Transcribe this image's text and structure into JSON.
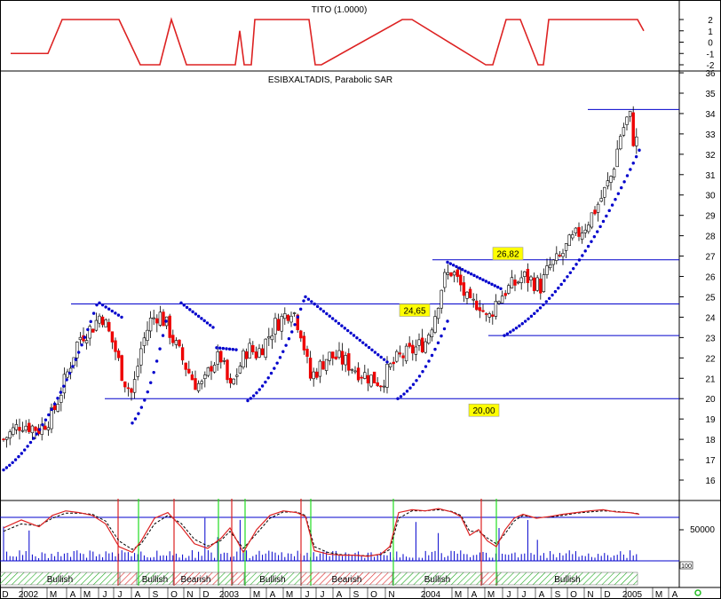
{
  "colors": {
    "indicator_line": "#dd2222",
    "sar_dots": "#0000cc",
    "level_lines": "#0000cc",
    "candle_up": "#ffffff",
    "candle_down": "#ee0000",
    "volume_bars": "#0000cc",
    "stoch_fast": "#dd2222",
    "stoch_slow": "#000000",
    "label_bg": "#ffff00",
    "bullish_hatch": "#22aa22",
    "bearish_hatch": "#dd2222",
    "signal_buy": "#22dd22",
    "signal_sell": "#dd2222"
  },
  "chart_data": [
    {
      "type": "line",
      "title": "TITO (1.0000)",
      "ylim": [
        -2,
        2
      ],
      "yticks": [
        "2",
        "1",
        "0",
        "-1",
        "-2"
      ],
      "x": [
        0,
        42,
        58,
        122,
        146,
        168,
        181,
        198,
        253,
        258,
        263,
        271,
        275,
        336,
        343,
        350,
        441,
        452,
        535,
        543,
        558,
        574,
        594,
        600,
        606,
        706,
        713
      ],
      "values": [
        -1,
        -1,
        2,
        2,
        -2,
        -2,
        2,
        -2,
        -2,
        1,
        -2,
        -2,
        2,
        2,
        -2,
        -2,
        2,
        2,
        -2,
        -2,
        2,
        2,
        -2,
        -2,
        2,
        2,
        1
      ]
    },
    {
      "type": "candlestick",
      "title": "ESIBXALTADIS, Parabolic SAR",
      "ylim": [
        15,
        36
      ],
      "yticks": [
        "16",
        "17",
        "18",
        "19",
        "20",
        "21",
        "22",
        "23",
        "24",
        "25",
        "26",
        "27",
        "28",
        "29",
        "30",
        "31",
        "32",
        "33",
        "34",
        "35",
        "36"
      ],
      "price_anchors": {
        "x": [
          0,
          20,
          40,
          55,
          70,
          85,
          100,
          110,
          125,
          135,
          145,
          155,
          165,
          175,
          185,
          195,
          205,
          215,
          225,
          235,
          245,
          255,
          265,
          275,
          285,
          295,
          305,
          315,
          325,
          335,
          340,
          345,
          355,
          365,
          375,
          385,
          395,
          405,
          415,
          425,
          435,
          445,
          455,
          465,
          475,
          485,
          495,
          505,
          515,
          525,
          535,
          545,
          555,
          565,
          575,
          585,
          595,
          605,
          615,
          625,
          635,
          645,
          655,
          665,
          675,
          685,
          695,
          700,
          705,
          710,
          716
        ],
        "values": [
          18.0,
          18.8,
          18.5,
          19.2,
          21.0,
          23.0,
          23.5,
          24.2,
          22.5,
          21.0,
          20.2,
          22.5,
          23.8,
          24.2,
          23.5,
          22.5,
          21.6,
          20.8,
          20.6,
          21.8,
          22.0,
          20.4,
          21.5,
          22.5,
          22.2,
          22.8,
          23.6,
          24.0,
          24.5,
          23.3,
          22.2,
          21.0,
          21.5,
          22.1,
          22.0,
          21.8,
          21.5,
          21.2,
          21.0,
          20.8,
          21.5,
          22.0,
          22.2,
          22.5,
          22.8,
          24.0,
          25.8,
          26.3,
          25.5,
          24.5,
          24.8,
          23.8,
          24.8,
          25.3,
          25.6,
          26.0,
          25.8,
          25.5,
          26.5,
          26.8,
          27.5,
          28.0,
          28.5,
          29.2,
          30.0,
          31.0,
          33.0,
          33.5,
          34.0,
          32.5,
          32.8
        ]
      },
      "levels": [
        {
          "value": 34.2,
          "x": [
            662,
            765
          ]
        },
        {
          "label": "26,82",
          "value": 26.82,
          "x": [
            487,
            765
          ]
        },
        {
          "label": "24,65",
          "value": 24.65,
          "x": [
            80,
            765
          ]
        },
        {
          "value": 23.1,
          "x": [
            550,
            765
          ]
        },
        {
          "label": "20,00",
          "value": 20.0,
          "x": [
            118,
            765
          ]
        }
      ],
      "sar_segments": [
        {
          "x": [
            0,
            105
          ],
          "values": [
            16.5,
            24.6
          ]
        },
        {
          "x": [
            108,
            133
          ],
          "values": [
            24.7,
            24.0
          ]
        },
        {
          "x": [
            145,
            183
          ],
          "values": [
            18.8,
            23.8
          ]
        },
        {
          "x": [
            200,
            236
          ],
          "values": [
            24.7,
            23.5
          ]
        },
        {
          "x": [
            240,
            262
          ],
          "values": [
            22.5,
            22.4
          ]
        },
        {
          "x": [
            275,
            338
          ],
          "values": [
            19.9,
            24.8
          ]
        },
        {
          "x": [
            340,
            432
          ],
          "values": [
            25.0,
            21.8
          ]
        },
        {
          "x": [
            444,
            500
          ],
          "values": [
            20.0,
            23.8
          ]
        },
        {
          "x": [
            500,
            560
          ],
          "values": [
            26.7,
            25.4
          ]
        },
        {
          "x": [
            564,
            716
          ],
          "values": [
            23.1,
            32.2
          ]
        }
      ]
    },
    {
      "type": "line",
      "title": "",
      "ylim": [
        0,
        100
      ],
      "stoch_fast": {
        "x": [
          0,
          20,
          40,
          55,
          70,
          85,
          100,
          115,
          130,
          145,
          155,
          170,
          185,
          200,
          215,
          230,
          245,
          255,
          270,
          285,
          300,
          315,
          330,
          340,
          350,
          365,
          380,
          395,
          410,
          425,
          435,
          445,
          460,
          475,
          490,
          505,
          515,
          525,
          535,
          545,
          555,
          565,
          575,
          585,
          600,
          615,
          630,
          645,
          660,
          675,
          690,
          705,
          716
        ],
        "values": [
          58,
          72,
          60,
          80,
          88,
          85,
          80,
          65,
          25,
          15,
          35,
          75,
          85,
          60,
          30,
          22,
          40,
          58,
          15,
          55,
          80,
          88,
          85,
          78,
          18,
          12,
          10,
          10,
          8,
          12,
          25,
          85,
          90,
          88,
          92,
          86,
          78,
          45,
          55,
          35,
          25,
          55,
          75,
          82,
          75,
          78,
          82,
          85,
          88,
          90,
          86,
          85,
          82
        ]
      },
      "stoch_slow": {
        "x": [
          0,
          20,
          40,
          55,
          70,
          85,
          100,
          115,
          130,
          145,
          155,
          170,
          185,
          200,
          215,
          230,
          245,
          255,
          270,
          285,
          300,
          315,
          330,
          340,
          350,
          365,
          380,
          395,
          410,
          425,
          435,
          445,
          460,
          475,
          490,
          505,
          515,
          525,
          535,
          545,
          555,
          565,
          575,
          585,
          600,
          615,
          630,
          645,
          660,
          675,
          690,
          705,
          716
        ],
        "values": [
          52,
          65,
          62,
          75,
          84,
          84,
          82,
          70,
          35,
          20,
          30,
          65,
          80,
          66,
          38,
          26,
          36,
          52,
          22,
          48,
          75,
          86,
          86,
          80,
          25,
          15,
          11,
          10,
          9,
          11,
          20,
          75,
          88,
          88,
          90,
          87,
          80,
          52,
          52,
          40,
          30,
          48,
          70,
          80,
          76,
          77,
          80,
          84,
          86,
          88,
          87,
          85,
          83
        ]
      },
      "ytick": "50000",
      "signals": [
        {
          "color": "sell",
          "x": 133
        },
        {
          "color": "buy",
          "x": 156
        },
        {
          "color": "sell",
          "x": 196
        },
        {
          "color": "buy",
          "x": 246
        },
        {
          "color": "sell",
          "x": 261
        },
        {
          "color": "buy",
          "x": 276
        },
        {
          "color": "sell",
          "x": 339
        },
        {
          "color": "buy",
          "x": 350
        },
        {
          "color": "buy",
          "x": 443
        },
        {
          "color": "sell",
          "x": 542
        },
        {
          "color": "buy",
          "x": 559
        }
      ],
      "volume_tick": "100"
    }
  ],
  "trend_bands": [
    {
      "label": "Bullish",
      "type": "bullish",
      "x": [
        0,
        135
      ]
    },
    {
      "label": "",
      "type": "bearish",
      "x": [
        135,
        154
      ]
    },
    {
      "label": "Bullish",
      "type": "bullish",
      "x": [
        154,
        195
      ]
    },
    {
      "label": "Bearish",
      "type": "bearish",
      "x": [
        195,
        246
      ]
    },
    {
      "label": "",
      "type": "bullish",
      "x": [
        246,
        262
      ]
    },
    {
      "label": "",
      "type": "bearish",
      "x": [
        262,
        275
      ]
    },
    {
      "label": "Bullish",
      "type": "bullish",
      "x": [
        275,
        339
      ]
    },
    {
      "label": "Bearish",
      "type": "bearish",
      "x": [
        339,
        442
      ]
    },
    {
      "label": "Bullish",
      "type": "bullish",
      "x": [
        442,
        543
      ]
    },
    {
      "label": "",
      "type": "bearish",
      "x": [
        543,
        560
      ]
    },
    {
      "label": "Bullish",
      "type": "bullish",
      "x": [
        560,
        718
      ]
    }
  ],
  "time_axis": [
    {
      "label": "D",
      "x": 6
    },
    {
      "label": "2002",
      "x": 32
    },
    {
      "label": "M",
      "x": 60
    },
    {
      "label": "A",
      "x": 82
    },
    {
      "label": "M",
      "x": 98
    },
    {
      "label": "J",
      "x": 118
    },
    {
      "label": "J",
      "x": 135
    },
    {
      "label": "A",
      "x": 155
    },
    {
      "label": "S",
      "x": 175
    },
    {
      "label": "O",
      "x": 196
    },
    {
      "label": "N",
      "x": 214
    },
    {
      "label": "D",
      "x": 232
    },
    {
      "label": "2003",
      "x": 258
    },
    {
      "label": "M",
      "x": 289
    },
    {
      "label": "A",
      "x": 307
    },
    {
      "label": "M",
      "x": 326
    },
    {
      "label": "J",
      "x": 346
    },
    {
      "label": "J",
      "x": 363
    },
    {
      "label": "A",
      "x": 382
    },
    {
      "label": "S",
      "x": 401
    },
    {
      "label": "O",
      "x": 421
    },
    {
      "label": "N",
      "x": 441
    },
    {
      "label": "2004",
      "x": 485
    },
    {
      "label": "M",
      "x": 516
    },
    {
      "label": "A",
      "x": 534
    },
    {
      "label": "M",
      "x": 553
    },
    {
      "label": "J",
      "x": 573
    },
    {
      "label": "J",
      "x": 590
    },
    {
      "label": "A",
      "x": 610
    },
    {
      "label": "S",
      "x": 628
    },
    {
      "label": "O",
      "x": 646
    },
    {
      "label": "N",
      "x": 665
    },
    {
      "label": "D",
      "x": 684
    },
    {
      "label": "2005",
      "x": 712
    },
    {
      "label": "M",
      "x": 742
    },
    {
      "label": "A",
      "x": 760
    }
  ]
}
